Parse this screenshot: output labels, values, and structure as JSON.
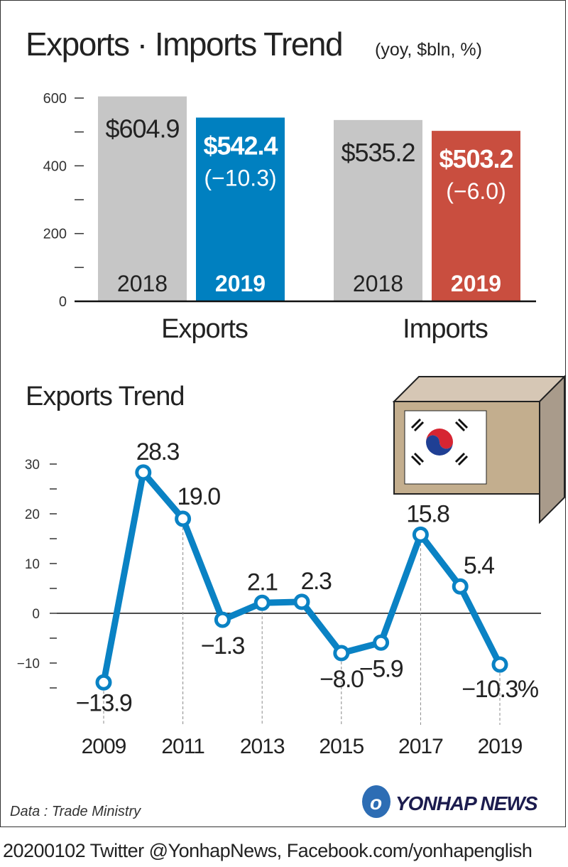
{
  "title": "Exports · Imports Trend",
  "subtitle": "(yoy, $bln, %)",
  "source": "Data : Trade Ministry",
  "logo_text": "YONHAP NEWS",
  "footer": "20200102 Twitter @YonhapNews,  Facebook.com/yonhapenglish",
  "colors": {
    "gray": "#c6c6c6",
    "blue": "#0080c0",
    "red": "#c94e3f",
    "line": "#0a82c4"
  },
  "chart_data": [
    {
      "type": "bar",
      "title": "Exports · Imports Trend",
      "unit": "$bln",
      "ylim": [
        0,
        600
      ],
      "yticks": [
        "0",
        "200",
        "400",
        "600"
      ],
      "groups": [
        {
          "name": "Exports",
          "bars": [
            {
              "year": "2018",
              "value": 604.9,
              "label": "$604.9"
            },
            {
              "year": "2019",
              "value": 542.4,
              "label": "$542.4",
              "change": "(−10.3)"
            }
          ]
        },
        {
          "name": "Imports",
          "bars": [
            {
              "year": "2018",
              "value": 535.2,
              "label": "$535.2"
            },
            {
              "year": "2019",
              "value": 503.2,
              "label": "$503.2",
              "change": "(−6.0)"
            }
          ]
        }
      ]
    },
    {
      "type": "line",
      "title": "Exports Trend",
      "unit": "%",
      "ylim": [
        -15,
        30
      ],
      "yticks": [
        "−10",
        "0",
        "10",
        "20",
        "30"
      ],
      "xticks": [
        "2009",
        "2011",
        "2013",
        "2015",
        "2017",
        "2019"
      ],
      "x": [
        2009,
        2010,
        2011,
        2012,
        2013,
        2014,
        2015,
        2016,
        2017,
        2018,
        2019
      ],
      "y": [
        -13.9,
        28.3,
        19.0,
        -1.3,
        2.1,
        2.3,
        -8.0,
        -5.9,
        15.8,
        5.4,
        -10.3
      ],
      "labels": [
        "−13.9",
        "28.3",
        "19.0",
        "−1.3",
        "2.1",
        "2.3",
        "−8.0",
        "−5.9",
        "15.8",
        "5.4",
        "−10.3%"
      ]
    }
  ]
}
